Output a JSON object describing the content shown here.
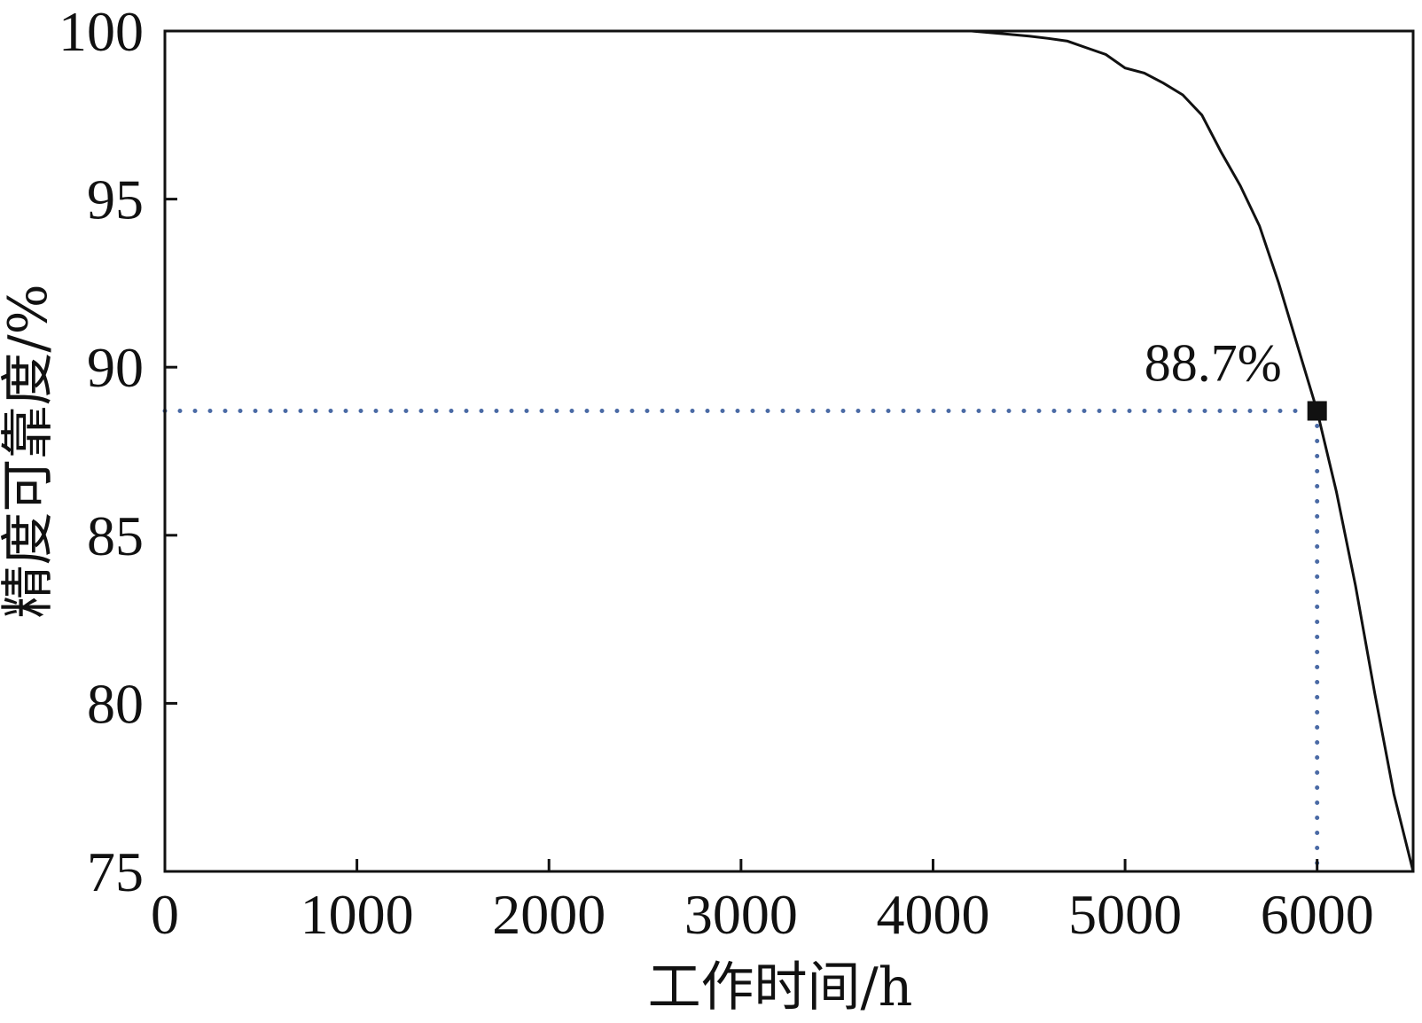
{
  "chart_data": {
    "type": "line",
    "title": "",
    "xlabel": "工作时间/h",
    "ylabel": "精度可靠度/%",
    "xlim": [
      0,
      6500
    ],
    "ylim": [
      75,
      100
    ],
    "x_ticks": [
      0,
      1000,
      2000,
      3000,
      4000,
      5000,
      6000
    ],
    "y_ticks": [
      75,
      80,
      85,
      90,
      95,
      100
    ],
    "grid": false,
    "series": [
      {
        "color": "#111111",
        "points": [
          [
            0,
            100
          ],
          [
            1000,
            100
          ],
          [
            2000,
            100
          ],
          [
            3000,
            100
          ],
          [
            4000,
            100
          ],
          [
            4200,
            100
          ],
          [
            4300,
            99.95
          ],
          [
            4400,
            99.9
          ],
          [
            4500,
            99.85
          ],
          [
            4600,
            99.78
          ],
          [
            4700,
            99.7
          ],
          [
            4800,
            99.5
          ],
          [
            4900,
            99.3
          ],
          [
            5000,
            98.9
          ],
          [
            5100,
            98.75
          ],
          [
            5200,
            98.45
          ],
          [
            5300,
            98.1
          ],
          [
            5400,
            97.5
          ],
          [
            5500,
            96.4
          ],
          [
            5600,
            95.4
          ],
          [
            5700,
            94.2
          ],
          [
            5800,
            92.5
          ],
          [
            5900,
            90.6
          ],
          [
            6000,
            88.7
          ],
          [
            6100,
            86.3
          ],
          [
            6200,
            83.5
          ],
          [
            6300,
            80.3
          ],
          [
            6400,
            77.3
          ],
          [
            6500,
            75
          ]
        ]
      }
    ],
    "annotations": [
      {
        "text": "88.7%",
        "x": 6000,
        "y": 88.7,
        "marker": "square",
        "guide_color": "#4a6aa5"
      }
    ]
  }
}
